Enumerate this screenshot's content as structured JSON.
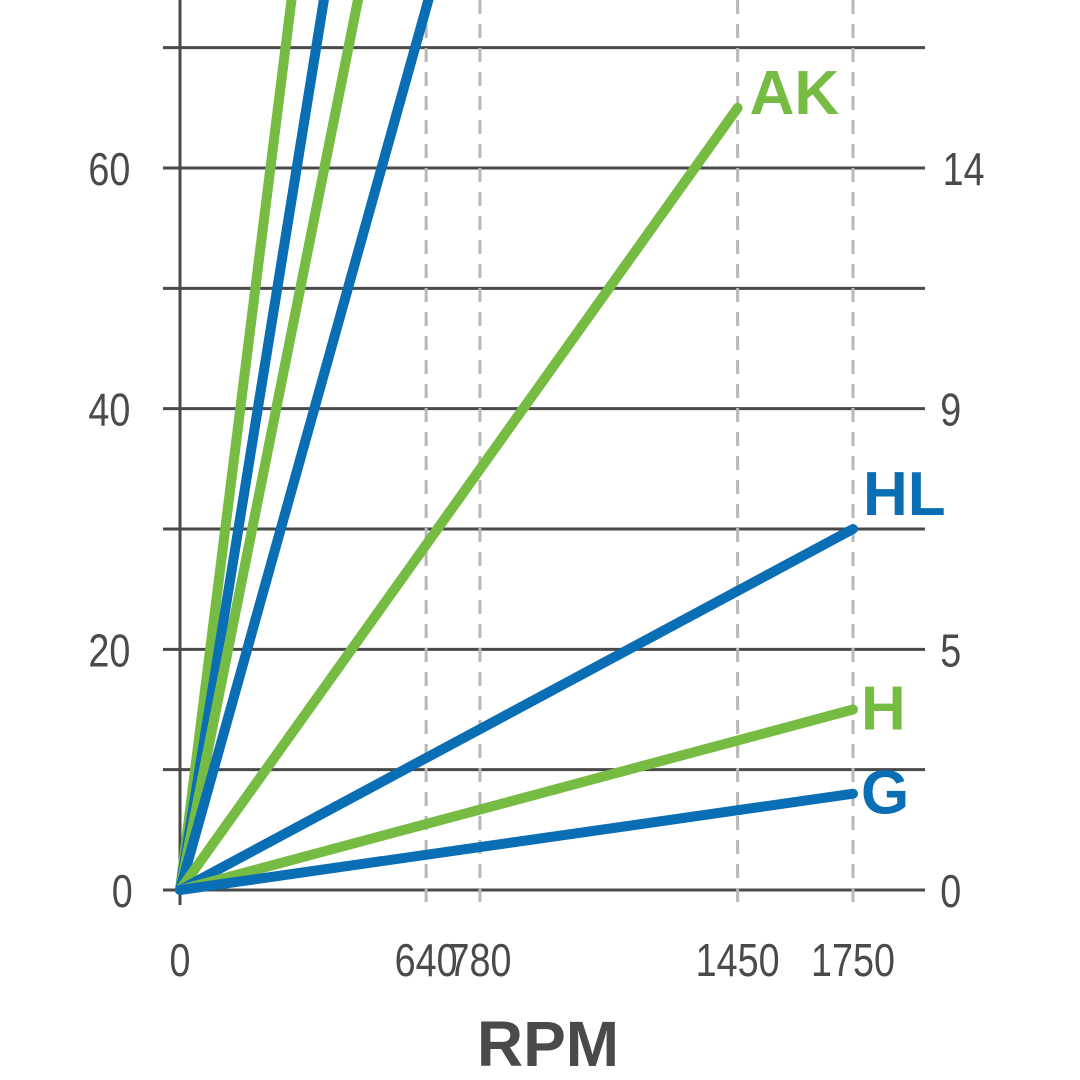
{
  "chart_data": {
    "type": "line",
    "xlabel": "RPM",
    "x_ticks": [
      0,
      640,
      780,
      1450,
      1750
    ],
    "x_marker_lines": [
      640,
      780,
      1450,
      1750
    ],
    "xlim": [
      0,
      1930
    ],
    "left_axis": {
      "ticks": [
        0,
        20,
        40,
        60
      ],
      "ylim": [
        0,
        70
      ]
    },
    "right_axis": {
      "ticks": [
        "0",
        "5",
        "9",
        "14"
      ]
    },
    "gridlines_y": [
      0,
      10,
      20,
      30,
      40,
      50,
      60,
      70
    ],
    "colors": {
      "green": "#76bc43",
      "blue": "#0a6eb4",
      "axis": "#4a4a4a",
      "marker": "#b8b8b8"
    },
    "series": [
      {
        "color": "green",
        "x": [
          0,
          337
        ],
        "y": [
          0,
          86
        ],
        "end_marker": false
      },
      {
        "color": "blue",
        "x": [
          0,
          435
        ],
        "y": [
          0,
          86
        ],
        "end_marker": false
      },
      {
        "color": "green",
        "x": [
          0,
          538
        ],
        "y": [
          0,
          86
        ],
        "end_marker": false
      },
      {
        "color": "blue",
        "x": [
          0,
          751
        ],
        "y": [
          0,
          86
        ],
        "end_marker": false
      },
      {
        "name": "AK",
        "color": "green",
        "x": [
          0,
          1450
        ],
        "y": [
          0,
          65
        ]
      },
      {
        "name": "HL",
        "color": "blue",
        "x": [
          0,
          1750
        ],
        "y": [
          0,
          30
        ]
      },
      {
        "name": "H",
        "color": "green",
        "x": [
          0,
          1750
        ],
        "y": [
          0,
          15
        ]
      },
      {
        "name": "G",
        "color": "blue",
        "x": [
          0,
          1750
        ],
        "y": [
          0,
          8
        ]
      }
    ]
  }
}
